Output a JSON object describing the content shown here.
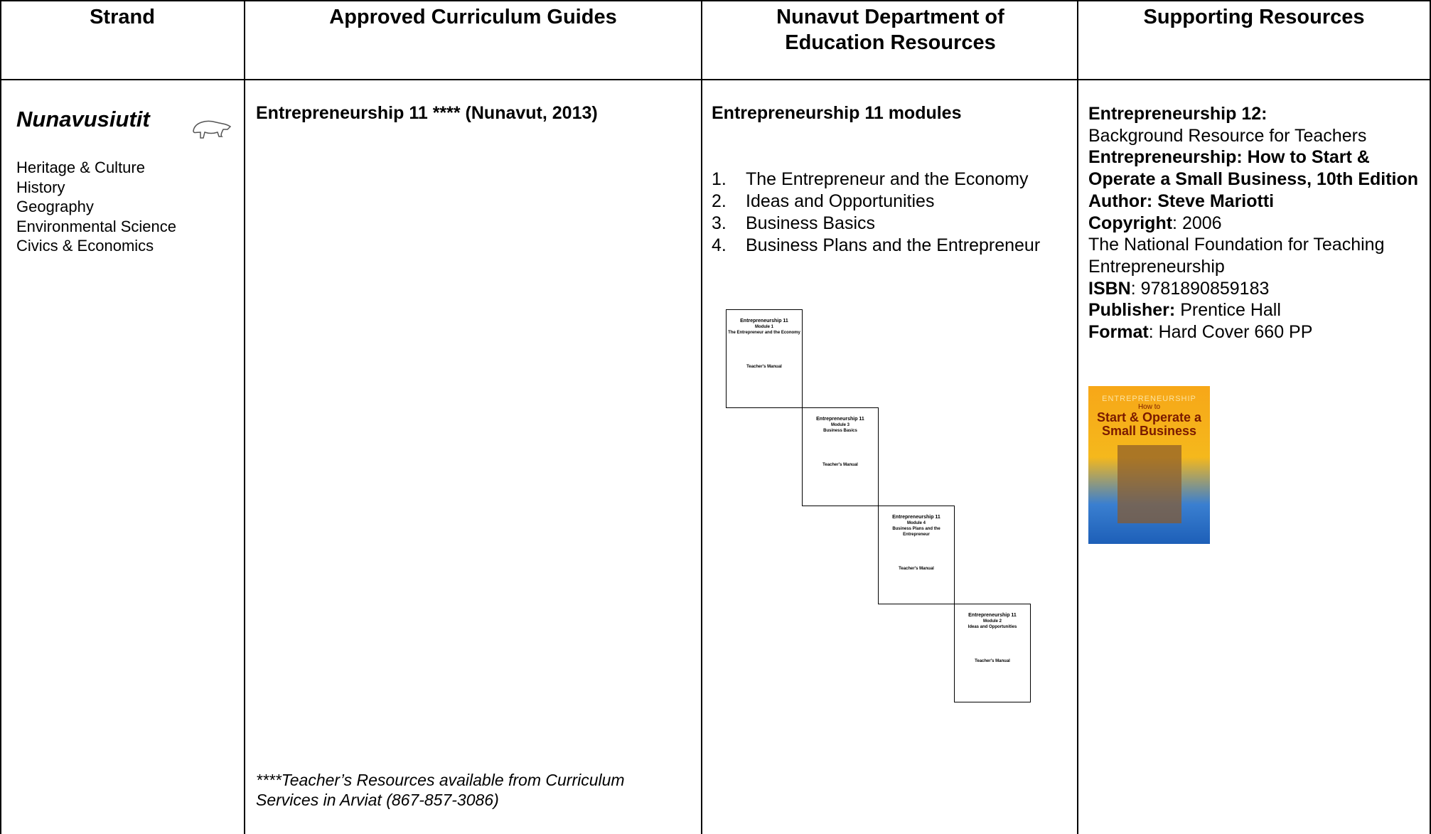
{
  "table": {
    "headers": [
      "Strand",
      "Approved Curriculum Guides",
      "Nunavut Department of Education Resources",
      "Supporting Resources"
    ],
    "strand": {
      "title": "Nunavusiutit",
      "subjects": [
        "Heritage & Culture",
        "History",
        "Geography",
        "Environmental Science",
        "Civics & Economics"
      ]
    },
    "curriculum": {
      "title": "Entrepreneurship 11 **** (Nunavut, 2013)",
      "note": "****Teacher’s Resources available from Curriculum Services in Arviat (867-857-3086)"
    },
    "department": {
      "title": "Entrepreneurship 11 modules",
      "modules": [
        "The Entrepreneur and the Economy",
        "Ideas and Opportunities",
        "Business Basics",
        "Business Plans and the Entrepreneur"
      ],
      "covers": [
        {
          "title": "Entrepreneurship 11",
          "module": "Module 1",
          "subtitle": "The Entrepreneur and the Economy",
          "label": "Teacher's Manual"
        },
        {
          "title": "Entrepreneurship 11",
          "module": "Module 3",
          "subtitle": "Business Basics",
          "label": "Teacher's Manual"
        },
        {
          "title": "Entrepreneurship 11",
          "module": "Module 4",
          "subtitle": "Business Plans and the Entrepreneur",
          "label": "Teacher's Manual"
        },
        {
          "title": "Entrepreneurship 11",
          "module": "Module 2",
          "subtitle": "Ideas and Opportunities",
          "label": "Teacher's Manual"
        }
      ]
    },
    "supporting": {
      "lines": [
        {
          "bold": "Entrepreneurship 12:"
        },
        {
          "text": "Background Resource for Teachers"
        },
        {
          "bold": "Entrepreneurship: How to Start & Operate a Small Business, 10th Edition"
        },
        {
          "bold": "Author: Steve Mariotti"
        },
        {
          "bold": "Copyright",
          "text": ": 2006"
        },
        {
          "text": "The National Foundation for Teaching Entrepreneurship"
        },
        {
          "bold": "ISBN",
          "text": ": 9781890859183"
        },
        {
          "bold": "Publisher:",
          "text": " Prentice Hall"
        },
        {
          "bold": "Format",
          "text": ": Hard Cover 660 PP"
        }
      ],
      "book_cover": {
        "series": "ENTREPRENEURSHIP",
        "lead": "How to",
        "title": "Start & Operate a Small Business"
      }
    }
  }
}
